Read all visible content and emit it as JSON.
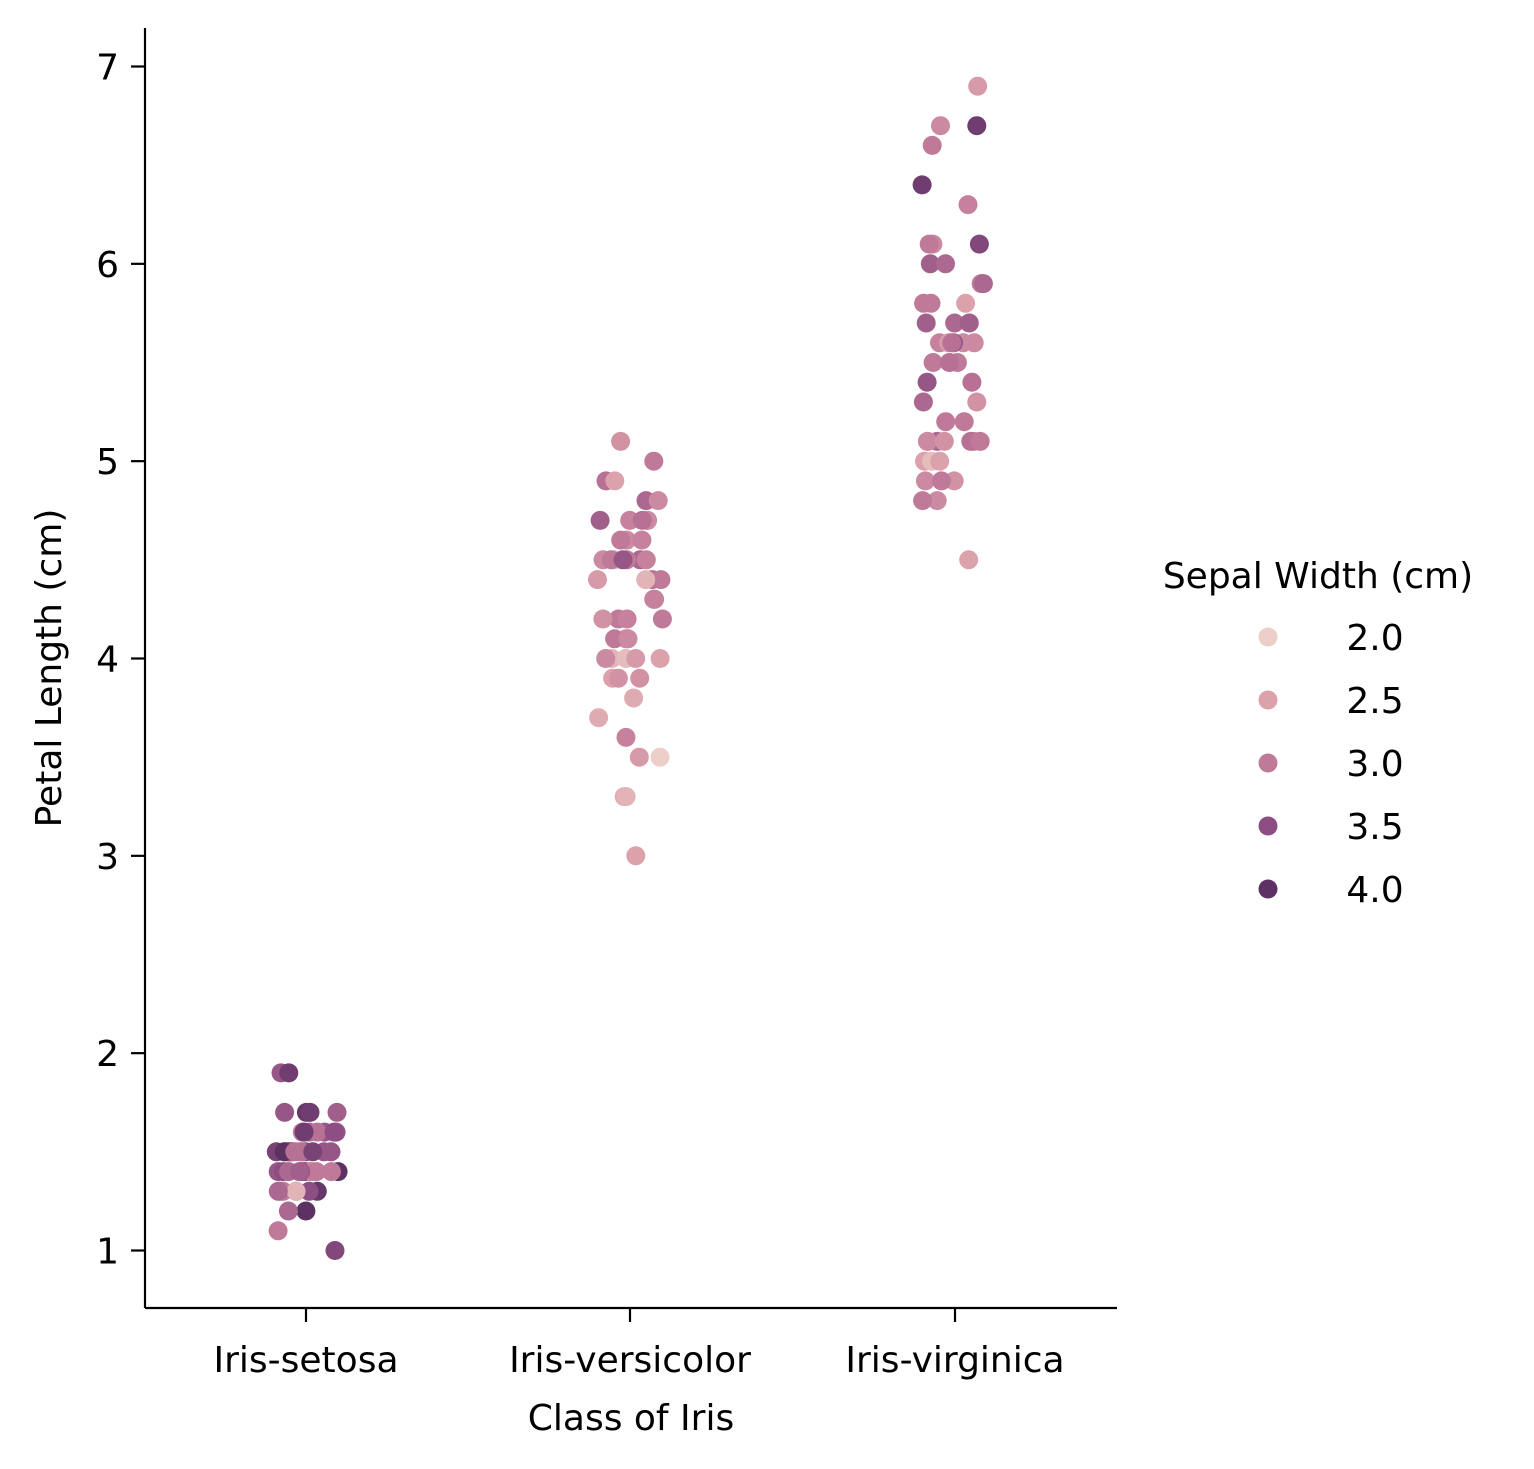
{
  "chart_data": {
    "type": "scatter",
    "subtype": "strip",
    "title": "",
    "xlabel": "Class of Iris",
    "ylabel": "Petal Length (cm)",
    "categories": [
      "Iris-setosa",
      "Iris-versicolor",
      "Iris-virginica"
    ],
    "ylim": [
      0.7,
      7.2
    ],
    "yticks": [
      1,
      2,
      3,
      4,
      5,
      6,
      7
    ],
    "ytick_labels": [
      "1",
      "2",
      "3",
      "4",
      "5",
      "6",
      "7"
    ],
    "grid": false,
    "hue": "Sepal Width (cm)",
    "legend": {
      "title": "Sepal Width (cm)",
      "placement": "right",
      "entries": [
        {
          "label": "2.0",
          "value": 2.0,
          "color": "#eccfc9"
        },
        {
          "label": "2.5",
          "value": 2.5,
          "color": "#dca2ac"
        },
        {
          "label": "3.0",
          "value": 3.0,
          "color": "#c07a99"
        },
        {
          "label": "3.5",
          "value": 3.5,
          "color": "#8c4e83"
        },
        {
          "label": "4.0",
          "value": 4.0,
          "color": "#5c3262"
        }
      ]
    },
    "series": [
      {
        "category": "Iris-setosa",
        "petal_length": [
          1.4,
          1.4,
          1.3,
          1.5,
          1.4,
          1.7,
          1.4,
          1.5,
          1.4,
          1.5,
          1.5,
          1.6,
          1.4,
          1.1,
          1.2,
          1.5,
          1.3,
          1.4,
          1.7,
          1.5,
          1.7,
          1.5,
          1.0,
          1.7,
          1.9,
          1.6,
          1.6,
          1.5,
          1.4,
          1.6,
          1.6,
          1.5,
          1.5,
          1.4,
          1.5,
          1.2,
          1.3,
          1.5,
          1.3,
          1.5,
          1.3,
          1.3,
          1.3,
          1.6,
          1.9,
          1.4,
          1.6,
          1.4,
          1.5,
          1.4
        ],
        "sepal_width": [
          3.5,
          3.0,
          3.2,
          3.1,
          3.6,
          3.9,
          3.4,
          3.4,
          2.9,
          3.1,
          3.7,
          3.4,
          3.0,
          3.0,
          4.0,
          4.4,
          3.9,
          3.5,
          3.8,
          3.8,
          3.4,
          3.7,
          3.6,
          3.3,
          3.4,
          3.0,
          3.4,
          3.5,
          3.4,
          3.2,
          3.1,
          3.4,
          4.1,
          4.2,
          3.1,
          3.2,
          3.5,
          3.1,
          3.0,
          3.4,
          3.5,
          2.3,
          3.2,
          3.5,
          3.8,
          3.0,
          3.8,
          3.2,
          3.7,
          3.3
        ]
      },
      {
        "category": "Iris-versicolor",
        "petal_length": [
          4.7,
          4.5,
          4.9,
          4.0,
          4.6,
          4.5,
          4.7,
          3.3,
          4.6,
          3.9,
          3.5,
          4.2,
          4.0,
          4.7,
          3.6,
          4.4,
          4.5,
          4.1,
          4.5,
          3.9,
          4.8,
          4.0,
          4.9,
          4.7,
          4.3,
          4.4,
          4.8,
          5.0,
          4.5,
          3.5,
          3.8,
          3.7,
          3.9,
          5.1,
          4.5,
          4.5,
          4.7,
          4.4,
          4.1,
          4.0,
          4.4,
          4.6,
          4.0,
          3.3,
          4.2,
          4.2,
          4.2,
          4.3,
          3.0,
          4.1
        ],
        "sepal_width": [
          3.2,
          3.2,
          3.1,
          2.3,
          2.8,
          2.8,
          3.3,
          2.4,
          2.9,
          2.7,
          2.0,
          3.0,
          2.2,
          2.9,
          2.9,
          3.1,
          3.0,
          2.7,
          2.2,
          2.5,
          3.2,
          2.8,
          2.5,
          2.8,
          2.9,
          3.0,
          2.8,
          3.0,
          2.9,
          2.6,
          2.4,
          2.4,
          2.7,
          2.7,
          3.0,
          3.4,
          3.1,
          2.3,
          3.0,
          2.5,
          2.6,
          3.0,
          2.6,
          2.3,
          2.7,
          3.0,
          2.9,
          2.9,
          2.5,
          2.8
        ]
      },
      {
        "category": "Iris-virginica",
        "petal_length": [
          6.0,
          5.1,
          5.9,
          5.6,
          5.8,
          6.6,
          4.5,
          6.3,
          5.8,
          6.1,
          5.1,
          5.3,
          5.5,
          5.0,
          5.1,
          5.3,
          5.5,
          6.7,
          6.9,
          5.0,
          5.7,
          4.9,
          6.7,
          4.9,
          5.7,
          6.0,
          4.8,
          4.9,
          5.6,
          5.8,
          6.1,
          6.4,
          5.6,
          5.1,
          5.6,
          6.1,
          5.6,
          5.5,
          4.8,
          5.4,
          5.6,
          5.1,
          5.1,
          5.9,
          5.7,
          5.2,
          5.0,
          5.2,
          5.4,
          5.1
        ],
        "sepal_width": [
          3.3,
          2.7,
          3.0,
          2.9,
          3.0,
          3.0,
          2.5,
          2.9,
          2.5,
          3.6,
          3.2,
          2.7,
          3.0,
          2.5,
          2.8,
          3.2,
          3.0,
          3.8,
          2.6,
          2.2,
          3.2,
          2.8,
          2.8,
          2.7,
          3.3,
          3.2,
          2.8,
          3.0,
          2.8,
          3.0,
          2.8,
          3.8,
          2.8,
          2.8,
          2.6,
          3.0,
          3.4,
          3.1,
          3.0,
          3.1,
          3.1,
          3.1,
          2.7,
          3.2,
          3.3,
          3.0,
          2.5,
          3.0,
          3.4,
          3.0
        ]
      }
    ]
  }
}
